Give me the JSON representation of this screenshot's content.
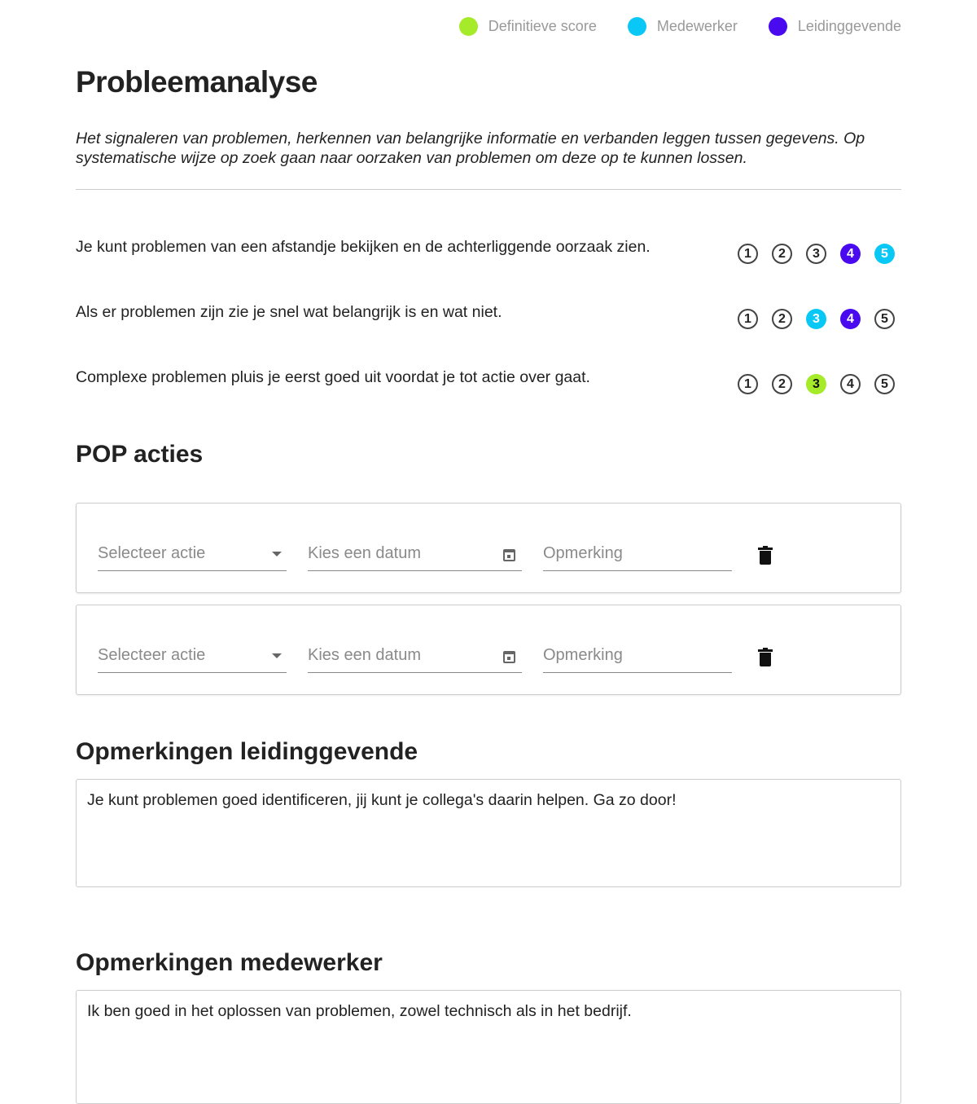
{
  "legend": [
    {
      "label": "Definitieve score",
      "color": "#a5eb2a"
    },
    {
      "label": "Medewerker",
      "color": "#0ac8f5"
    },
    {
      "label": "Leidinggevende",
      "color": "#4a0af0"
    }
  ],
  "title": "Probleemanalyse",
  "description": "Het signaleren van problemen, herkennen van belangrijke informatie en verbanden leggen tussen gegevens. Op systematische wijze op zoek gaan naar oorzaken van problemen om deze op te kunnen lossen.",
  "questions": [
    {
      "text": "Je kunt problemen van een afstandje bekijken en de achterliggende oorzaak zien.",
      "scale": [
        "1",
        "2",
        "3",
        "4",
        "5"
      ],
      "leidinggevende": 4,
      "medewerker": 5,
      "definitief": null
    },
    {
      "text": "Als er problemen zijn zie je snel wat belangrijk is en wat niet.",
      "scale": [
        "1",
        "2",
        "3",
        "4",
        "5"
      ],
      "leidinggevende": 4,
      "medewerker": 3,
      "definitief": null
    },
    {
      "text": "Complexe problemen pluis je eerst goed uit voordat je tot actie over gaat.",
      "scale": [
        "1",
        "2",
        "3",
        "4",
        "5"
      ],
      "leidinggevende": null,
      "medewerker": null,
      "definitief": 3
    }
  ],
  "pop": {
    "heading": "POP acties",
    "actions": [
      {
        "select_placeholder": "Selecteer actie",
        "date_placeholder": "Kies een datum",
        "remark_placeholder": "Opmerking"
      },
      {
        "select_placeholder": "Selecteer actie",
        "date_placeholder": "Kies een datum",
        "remark_placeholder": "Opmerking"
      }
    ]
  },
  "manager_comments": {
    "heading": "Opmerkingen leidinggevende",
    "value": "Je kunt problemen goed identificeren, jij kunt je collega's daarin helpen. Ga zo door!"
  },
  "employee_comments": {
    "heading": "Opmerkingen medewerker",
    "value": "Ik ben goed in het oplossen van problemen, zowel technisch als in het bedrijf."
  }
}
